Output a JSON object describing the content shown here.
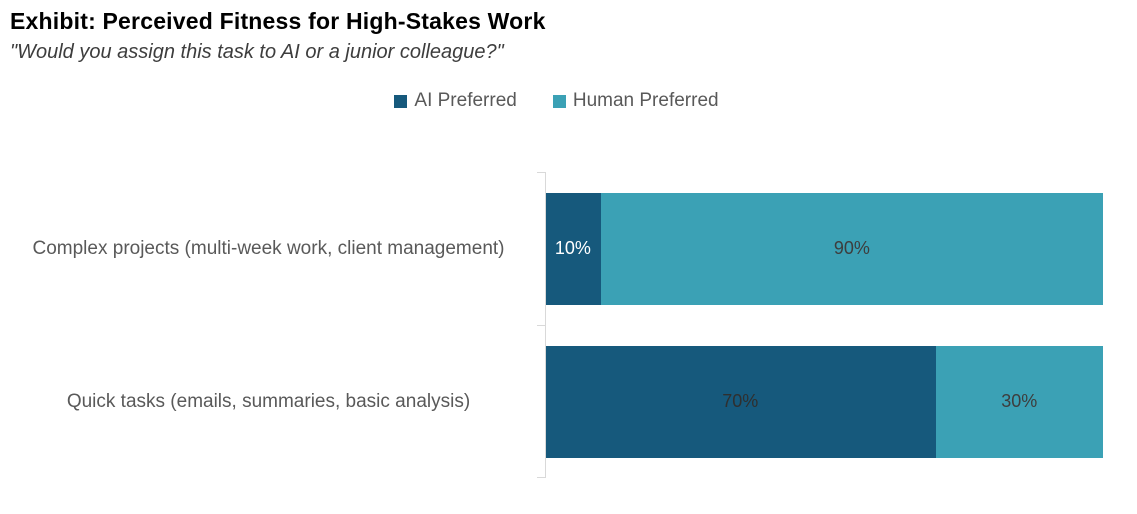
{
  "page": {
    "title": "Exhibit: Perceived Fitness for High-Stakes Work",
    "subtitle": "\"Would you assign this task to AI or a junior colleague?\""
  },
  "chart_data": {
    "type": "bar",
    "orientation": "horizontal",
    "stacked": true,
    "stacked_total": 100,
    "title": "Exhibit: Perceived Fitness for High-Stakes Work",
    "subtitle": "\"Would you assign this task to AI or a junior colleague?\"",
    "categories": [
      "Complex projects (multi-week work, client management)",
      "Quick tasks (emails, summaries, basic analysis)"
    ],
    "series": [
      {
        "name": "AI Preferred",
        "color": "#16597c",
        "values": [
          10,
          70
        ],
        "data_labels": [
          "10%",
          "70%"
        ],
        "label_colors": [
          "#ffffff",
          "#2f2f2f"
        ]
      },
      {
        "name": "Human Preferred",
        "color": "#3ba1b5",
        "values": [
          90,
          30
        ],
        "data_labels": [
          "90%",
          "30%"
        ],
        "label_colors": [
          "#3d3d3d",
          "#3d3d3d"
        ]
      }
    ],
    "value_suffix": "%",
    "xlim": [
      0,
      100
    ],
    "grid": false,
    "legend_position": "top",
    "axis_color": "#d9d9d9",
    "category_label_color": "#595959",
    "legend_text_color": "#595959"
  }
}
